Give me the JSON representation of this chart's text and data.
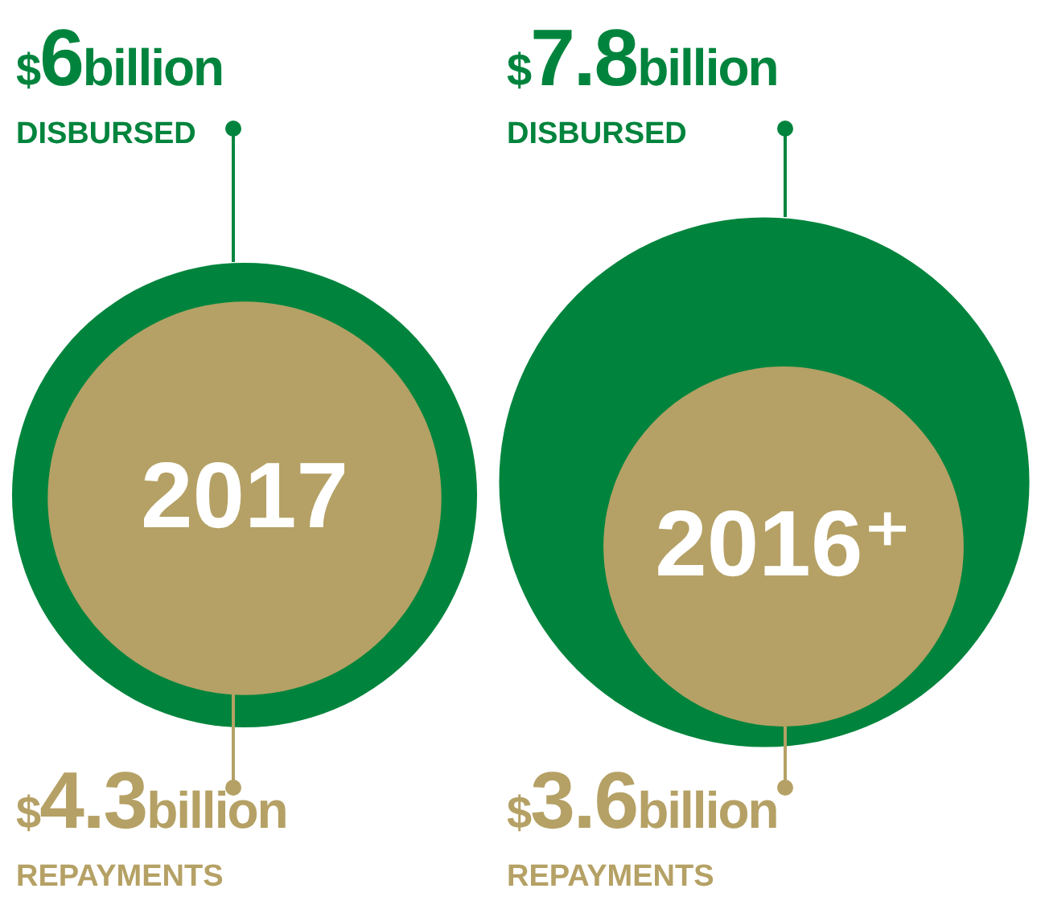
{
  "chart_data": {
    "type": "other",
    "categories": [
      "2017",
      "2016⁺"
    ],
    "series": [
      {
        "name": "DISBURSED",
        "color": "#00843d",
        "values": [
          6,
          7.8
        ],
        "value_labels": [
          "$6billion",
          "$7.8billion"
        ]
      },
      {
        "name": "REPAYMENTS",
        "color": "#b5a165",
        "values": [
          4.3,
          3.6
        ],
        "value_labels": [
          "$4.3billion",
          "$3.6billion"
        ]
      }
    ]
  }
}
